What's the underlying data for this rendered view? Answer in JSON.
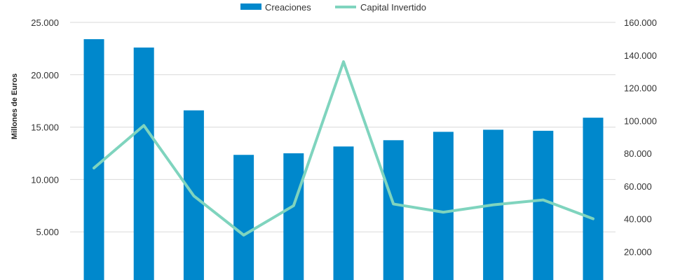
{
  "chart_data": {
    "type": "bar",
    "title": "",
    "ylabel": "Millones de Euros",
    "ylabel_right": "",
    "categories": [
      "",
      "",
      "",
      "",
      "",
      "",
      "",
      "",
      "",
      "",
      ""
    ],
    "series": [
      {
        "name": "Creaciones",
        "type": "bar",
        "axis": "left",
        "color": "#0088CC",
        "values": [
          23400,
          22600,
          16600,
          12350,
          12500,
          13150,
          13750,
          14550,
          14750,
          14650,
          15900
        ]
      },
      {
        "name": "Capital Invertido",
        "type": "line",
        "axis": "right",
        "color": "#7FD4BE",
        "values": [
          71000,
          97000,
          54000,
          30000,
          48000,
          136000,
          49000,
          44000,
          48500,
          51500,
          40000
        ]
      }
    ],
    "ylim": [
      0,
      25000
    ],
    "ylim_right": [
      0,
      160000
    ],
    "yticks_left": [
      "5.000",
      "10.000",
      "15.000",
      "20.000",
      "25.000"
    ],
    "yticks_right": [
      "20.000",
      "40.000",
      "60.000",
      "80.000",
      "100.000",
      "120.000",
      "140.000",
      "160.000"
    ],
    "grid": true,
    "legend": "top-center"
  }
}
